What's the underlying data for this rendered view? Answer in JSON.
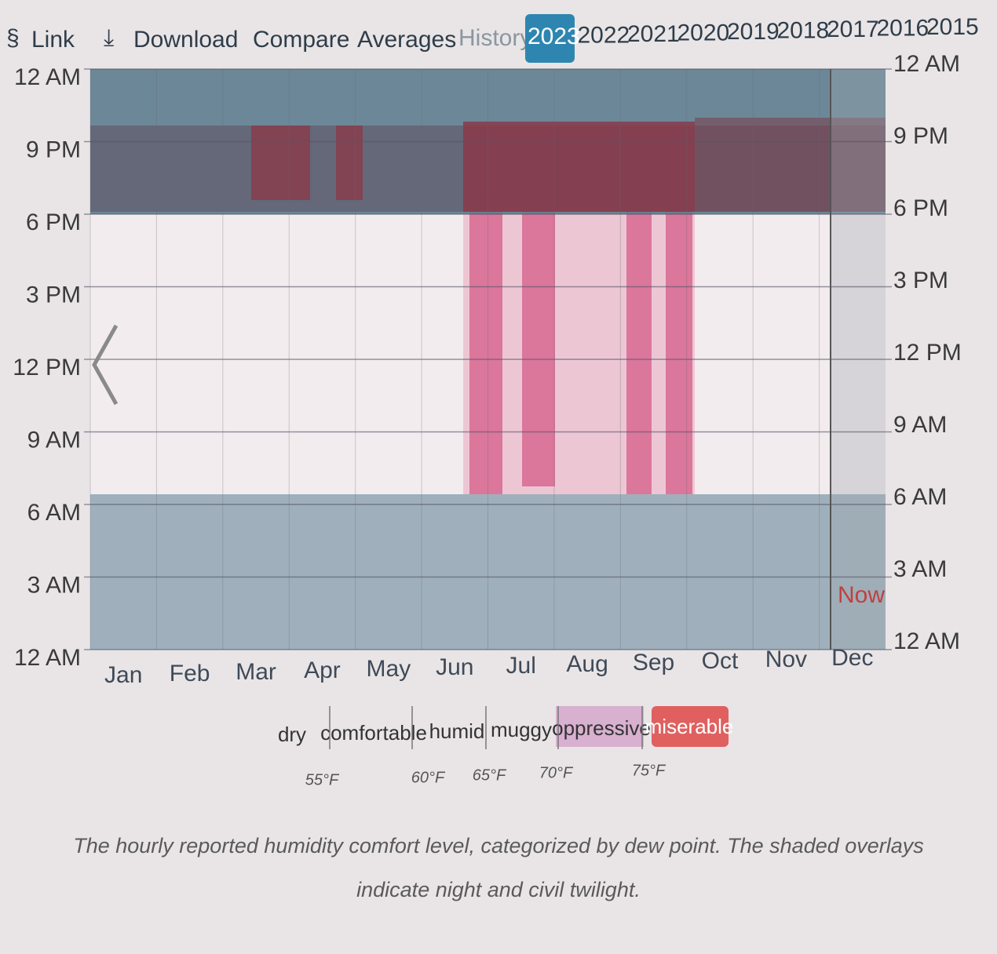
{
  "toolbar": {
    "link": "Link",
    "download": "Download",
    "compare": "Compare",
    "averages": "Averages",
    "history": "History:",
    "years": [
      "2023",
      "2022",
      "2021",
      "2020",
      "2019",
      "2018",
      "2017",
      "2016",
      "2015"
    ]
  },
  "chart": {
    "y_labels": [
      "12 AM",
      "9 PM",
      "6 PM",
      "3 PM",
      "12 PM",
      "9 AM",
      "6 AM",
      "3 AM",
      "12 AM"
    ],
    "months": [
      "Jan",
      "Feb",
      "Mar",
      "Apr",
      "May",
      "Jun",
      "Jul",
      "Aug",
      "Sep",
      "Oct",
      "Nov",
      "Dec"
    ],
    "now_label": "Now"
  },
  "legend": {
    "categories": [
      "dry",
      "comfortable",
      "humid",
      "muggy",
      "oppressive",
      "miserable"
    ],
    "thresholds": [
      "55°F",
      "60°F",
      "65°F",
      "70°F",
      "75°F"
    ]
  },
  "caption": "The hourly reported humidity comfort level, categorized by dew point. The shaded overlays indicate night and civil twilight."
}
